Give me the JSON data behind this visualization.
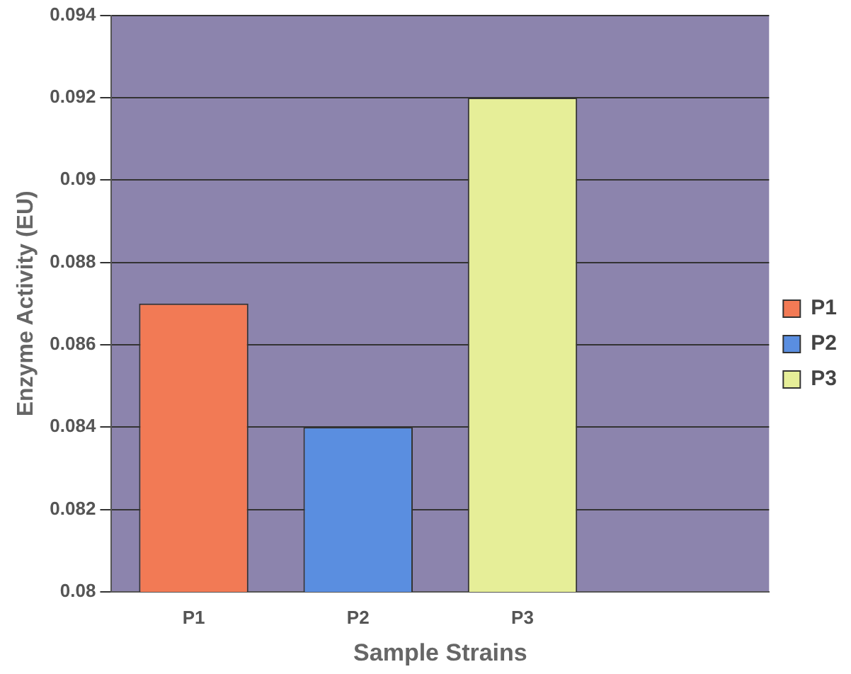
{
  "chart_data": {
    "type": "bar",
    "xlabel": "Sample Strains",
    "ylabel": "Enzyme Activity (EU)",
    "categories": [
      "P1",
      "P2",
      "P3",
      null
    ],
    "series": [
      {
        "name": "P1",
        "color": "#f27a55",
        "values": [
          0.087,
          null,
          null,
          null
        ]
      },
      {
        "name": "P2",
        "color": "#5a8ee0",
        "values": [
          null,
          0.084,
          null,
          null
        ]
      },
      {
        "name": "P3",
        "color": "#e6ee98",
        "values": [
          null,
          null,
          0.092,
          null
        ]
      }
    ],
    "ylim": [
      0.08,
      0.094
    ],
    "yticks": [
      0.08,
      0.082,
      0.084,
      0.086,
      0.088,
      0.09,
      0.092,
      0.094
    ],
    "grid": "y",
    "legend": "right"
  }
}
